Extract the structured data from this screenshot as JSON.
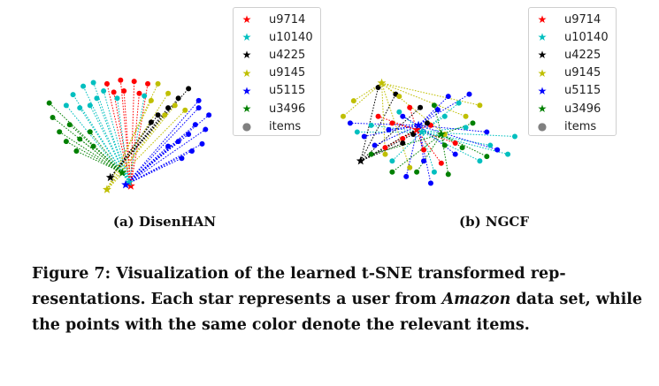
{
  "chart_data": [
    {
      "type": "scatter",
      "subcaption": "(a) DisenHAN",
      "legend": {
        "entries": [
          {
            "label": "u9714",
            "marker": "star",
            "color": "#ff0000"
          },
          {
            "label": "u10140",
            "marker": "star",
            "color": "#00bfbf"
          },
          {
            "label": "u4225",
            "marker": "star",
            "color": "#000000"
          },
          {
            "label": "u9145",
            "marker": "star",
            "color": "#bfbf00"
          },
          {
            "label": "u5115",
            "marker": "star",
            "color": "#0000ff"
          },
          {
            "label": "u3496",
            "marker": "star",
            "color": "#008000"
          },
          {
            "label": "items",
            "marker": "dot",
            "color": "#808080"
          }
        ],
        "position": "top-right"
      },
      "axes_visible": false,
      "xlim": [
        0,
        100
      ],
      "ylim": [
        0,
        100
      ],
      "series": [
        {
          "user": "u9714",
          "color": "#ff0000",
          "star": [
            52,
            7
          ],
          "items": [
            [
              38,
              92
            ],
            [
              46,
              95
            ],
            [
              54,
              94
            ],
            [
              62,
              92
            ],
            [
              48,
              86
            ],
            [
              57,
              84
            ],
            [
              42,
              85
            ]
          ]
        },
        {
          "user": "u10140",
          "color": "#00bfbf",
          "star": [
            51,
            10
          ],
          "items": [
            [
              18,
              83
            ],
            [
              24,
              90
            ],
            [
              30,
              93
            ],
            [
              14,
              74
            ],
            [
              22,
              72
            ],
            [
              32,
              80
            ],
            [
              36,
              86
            ],
            [
              28,
              74
            ],
            [
              44,
              80
            ],
            [
              60,
              82
            ]
          ]
        },
        {
          "user": "u4225",
          "color": "#000000",
          "star": [
            40,
            14
          ],
          "items": [
            [
              86,
              88
            ],
            [
              80,
              80
            ],
            [
              74,
              72
            ],
            [
              68,
              66
            ],
            [
              64,
              60
            ]
          ]
        },
        {
          "user": "u9145",
          "color": "#bfbf00",
          "star": [
            38,
            4
          ],
          "items": [
            [
              68,
              92
            ],
            [
              74,
              84
            ],
            [
              64,
              78
            ],
            [
              72,
              66
            ],
            [
              78,
              74
            ],
            [
              84,
              70
            ]
          ]
        },
        {
          "user": "u5115",
          "color": "#0000ff",
          "star": [
            49,
            8
          ],
          "items": [
            [
              92,
              72
            ],
            [
              98,
              66
            ],
            [
              96,
              54
            ],
            [
              90,
              58
            ],
            [
              86,
              50
            ],
            [
              80,
              44
            ],
            [
              94,
              42
            ],
            [
              88,
              36
            ],
            [
              82,
              30
            ],
            [
              74,
              40
            ],
            [
              92,
              78
            ]
          ]
        },
        {
          "user": "u3496",
          "color": "#008000",
          "star": [
            47,
            18
          ],
          "items": [
            [
              4,
              76
            ],
            [
              6,
              64
            ],
            [
              10,
              52
            ],
            [
              16,
              58
            ],
            [
              14,
              44
            ],
            [
              22,
              46
            ],
            [
              28,
              52
            ],
            [
              20,
              36
            ],
            [
              30,
              40
            ]
          ]
        }
      ]
    },
    {
      "type": "scatter",
      "subcaption": "(b) NGCF",
      "legend": {
        "entries": [
          {
            "label": "u9714",
            "marker": "star",
            "color": "#ff0000"
          },
          {
            "label": "u10140",
            "marker": "star",
            "color": "#00bfbf"
          },
          {
            "label": "u4225",
            "marker": "star",
            "color": "#000000"
          },
          {
            "label": "u9145",
            "marker": "star",
            "color": "#bfbf00"
          },
          {
            "label": "u5115",
            "marker": "star",
            "color": "#0000ff"
          },
          {
            "label": "u3496",
            "marker": "star",
            "color": "#008000"
          },
          {
            "label": "items",
            "marker": "dot",
            "color": "#808080"
          }
        ],
        "position": "top-right"
      },
      "axes_visible": false,
      "xlim": [
        0,
        100
      ],
      "ylim": [
        0,
        100
      ],
      "series": [
        {
          "user": "u9714",
          "color": "#ff0000",
          "star": [
            44,
            58
          ],
          "items": [
            [
              22,
              70
            ],
            [
              30,
              64
            ],
            [
              36,
              50
            ],
            [
              48,
              40
            ],
            [
              58,
              28
            ],
            [
              66,
              46
            ],
            [
              40,
              78
            ],
            [
              26,
              42
            ],
            [
              52,
              62
            ]
          ]
        },
        {
          "user": "u10140",
          "color": "#00bfbf",
          "star": [
            47,
            56
          ],
          "items": [
            [
              18,
              62
            ],
            [
              34,
              74
            ],
            [
              60,
              70
            ],
            [
              72,
              60
            ],
            [
              86,
              44
            ],
            [
              96,
              36
            ],
            [
              80,
              30
            ],
            [
              54,
              20
            ],
            [
              10,
              56
            ],
            [
              100,
              52
            ],
            [
              68,
              82
            ],
            [
              30,
              30
            ]
          ]
        },
        {
          "user": "u4225",
          "color": "#000000",
          "star": [
            12,
            30
          ],
          "items": [
            [
              22,
              96
            ],
            [
              32,
              90
            ],
            [
              46,
              78
            ],
            [
              50,
              64
            ],
            [
              42,
              54
            ],
            [
              36,
              46
            ]
          ]
        },
        {
          "user": "u9145",
          "color": "#bfbf00",
          "star": [
            24,
            100
          ],
          "items": [
            [
              2,
              70
            ],
            [
              8,
              84
            ],
            [
              34,
              88
            ],
            [
              80,
              80
            ],
            [
              72,
              70
            ],
            [
              60,
              54
            ],
            [
              40,
              24
            ],
            [
              26,
              36
            ]
          ]
        },
        {
          "user": "u5115",
          "color": "#0000ff",
          "star": [
            45,
            62
          ],
          "items": [
            [
              6,
              64
            ],
            [
              14,
              52
            ],
            [
              20,
              44
            ],
            [
              28,
              58
            ],
            [
              36,
              70
            ],
            [
              56,
              76
            ],
            [
              62,
              88
            ],
            [
              74,
              90
            ],
            [
              84,
              56
            ],
            [
              90,
              40
            ],
            [
              66,
              36
            ],
            [
              48,
              30
            ],
            [
              38,
              16
            ],
            [
              52,
              10
            ]
          ]
        },
        {
          "user": "u3496",
          "color": "#008000",
          "star": [
            58,
            54
          ],
          "items": [
            [
              54,
              80
            ],
            [
              60,
              44
            ],
            [
              76,
              64
            ],
            [
              70,
              42
            ],
            [
              84,
              34
            ],
            [
              62,
              18
            ],
            [
              44,
              20
            ],
            [
              30,
              20
            ],
            [
              18,
              36
            ]
          ]
        }
      ]
    }
  ],
  "caption": {
    "label": "Figure 7:",
    "text_before": " Visualization of the learned t-SNE transformed rep- resentations. Each star represents a user from ",
    "emphasis": "Amazon",
    "text_after": " data set, while the points with the same color denote the relevant items."
  }
}
